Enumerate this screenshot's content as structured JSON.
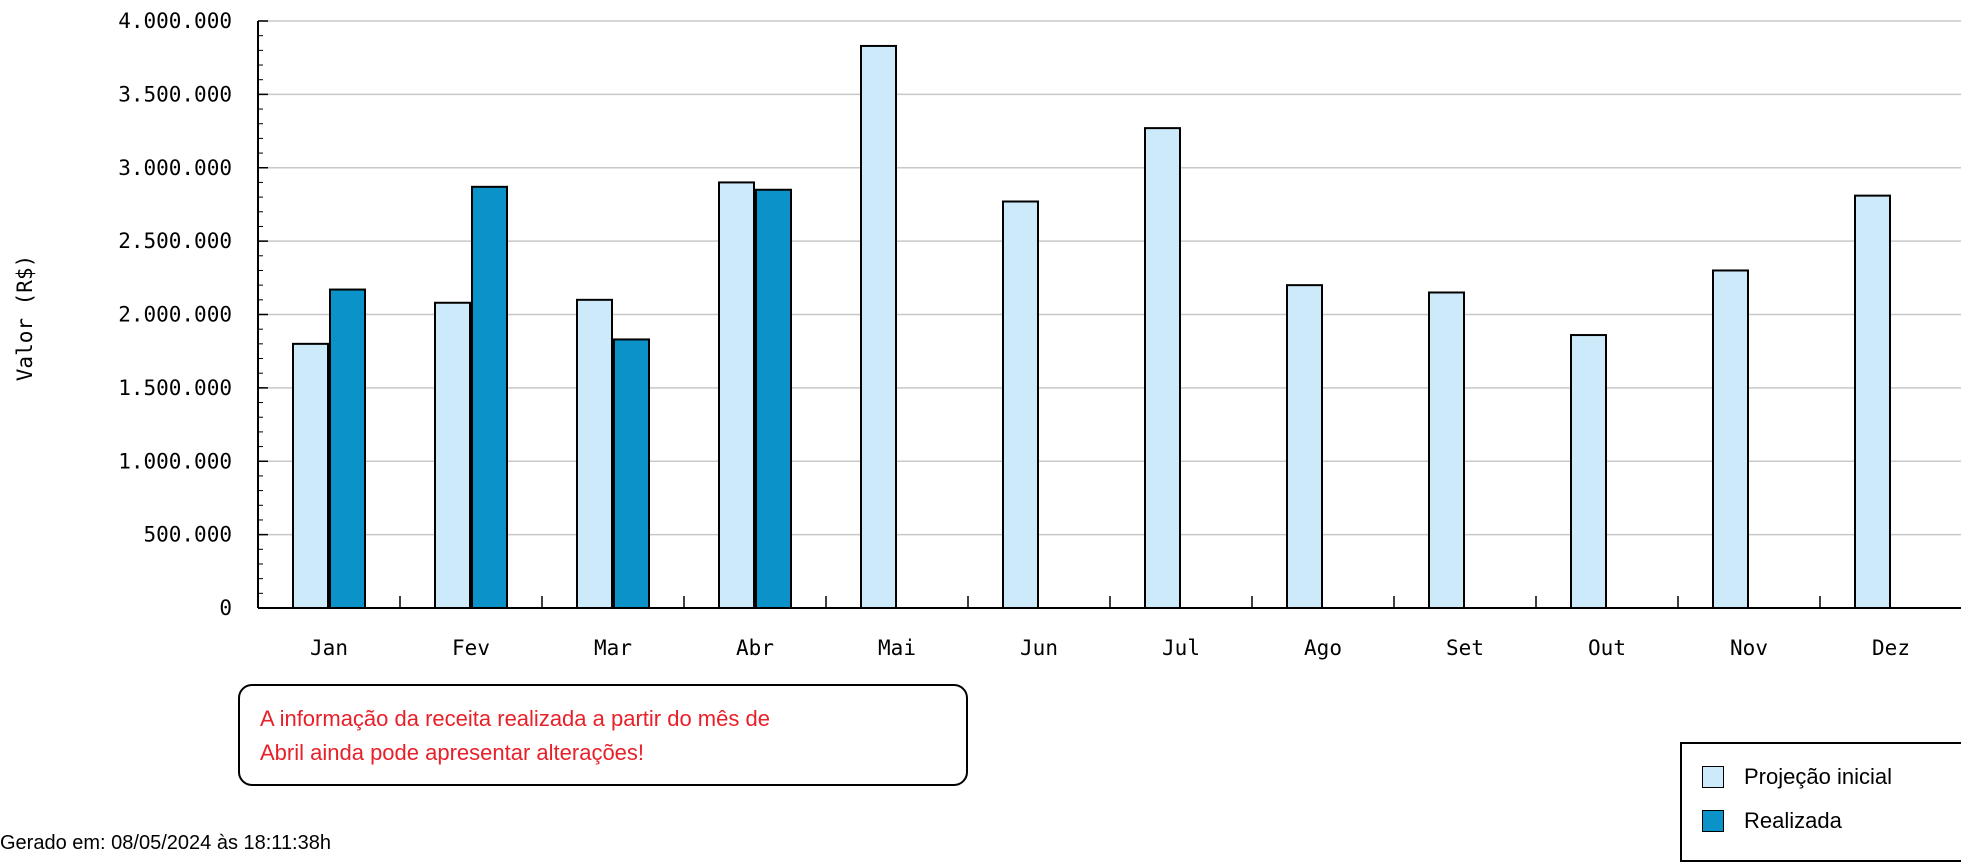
{
  "chart_data": {
    "type": "bar",
    "categories": [
      "Jan",
      "Fev",
      "Mar",
      "Abr",
      "Mai",
      "Jun",
      "Jul",
      "Ago",
      "Set",
      "Out",
      "Nov",
      "Dez"
    ],
    "series": [
      {
        "name": "Projeção inicial",
        "color": "#cdeafa",
        "values": [
          1800000,
          2080000,
          2100000,
          2900000,
          3830000,
          2770000,
          3270000,
          2200000,
          2150000,
          1860000,
          2300000,
          2810000
        ]
      },
      {
        "name": "Realizada",
        "color": "#0b93c9",
        "values": [
          2170000,
          2870000,
          1830000,
          2850000,
          null,
          null,
          null,
          null,
          null,
          null,
          null,
          null
        ]
      }
    ],
    "ylabel": "Valor (R$)",
    "xlabel": "",
    "ylim": [
      0,
      4000000
    ],
    "yticks": [
      0,
      500000,
      1000000,
      1500000,
      2000000,
      2500000,
      3000000,
      3500000,
      4000000
    ],
    "ytick_labels": [
      "0",
      "500.000",
      "1.000.000",
      "1.500.000",
      "2.000.000",
      "2.500.000",
      "3.000.000",
      "3.500.000",
      "4.000.000"
    ],
    "grid": true,
    "legend_position": "bottom-right"
  },
  "note": {
    "line1": "A informação da receita realizada a partir do mês de",
    "line2": "Abril ainda pode apresentar alterações!"
  },
  "generated_text": "Gerado em: 08/05/2024 às 18:11:38h",
  "colors": {
    "note_text": "#e8202a",
    "grid": "#c8c8c8"
  }
}
